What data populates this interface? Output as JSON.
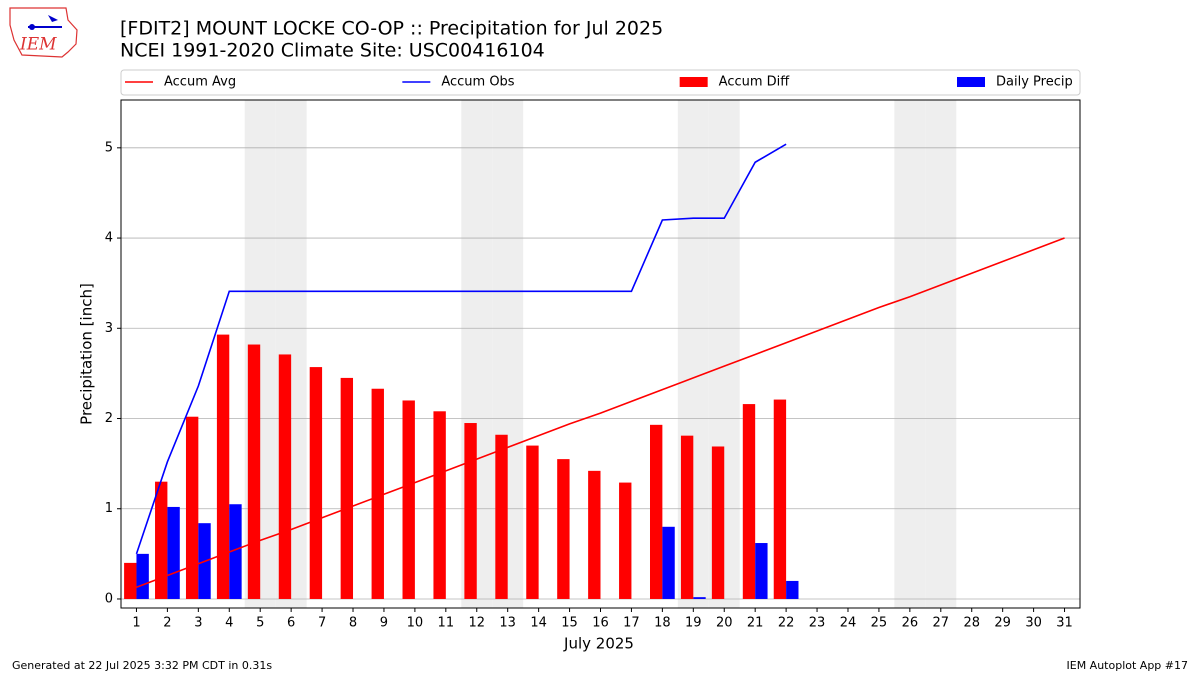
{
  "chart_data": {
    "type": "bar",
    "title": "[FDIT2] MOUNT LOCKE CO-OP :: Precipitation for Jul 2025",
    "subtitle": "NCEI 1991-2020 Climate Site: USC00416104",
    "logo_text": "IEM",
    "x_label": "July 2025",
    "y_label": "Precipitation [inch]",
    "x": [
      1,
      2,
      3,
      4,
      5,
      6,
      7,
      8,
      9,
      10,
      11,
      12,
      13,
      14,
      15,
      16,
      17,
      18,
      19,
      20,
      21,
      22,
      23,
      24,
      25,
      26,
      27,
      28,
      29,
      30,
      31
    ],
    "xlim": [
      0.5,
      31.5
    ],
    "xticks": [
      1,
      2,
      3,
      4,
      5,
      6,
      7,
      8,
      9,
      10,
      11,
      12,
      13,
      14,
      15,
      16,
      17,
      18,
      19,
      20,
      21,
      22,
      23,
      24,
      25,
      26,
      27,
      28,
      29,
      30,
      31
    ],
    "ylim": [
      -0.1,
      5.53
    ],
    "yticks": [
      0,
      1,
      2,
      3,
      4,
      5
    ],
    "grid": true,
    "legend": "top",
    "weekend_days": [
      5,
      6,
      12,
      13,
      19,
      20,
      26,
      27
    ],
    "series": [
      {
        "name": "Accum Avg",
        "color": "#ff0000",
        "type": "line",
        "values": [
          0.13,
          0.26,
          0.39,
          0.52,
          0.65,
          0.77,
          0.9,
          1.03,
          1.16,
          1.29,
          1.42,
          1.55,
          1.68,
          1.81,
          1.94,
          2.06,
          2.19,
          2.32,
          2.45,
          2.58,
          2.71,
          2.84,
          2.97,
          3.1,
          3.23,
          3.35,
          3.48,
          3.61,
          3.74,
          3.87,
          4.0
        ]
      },
      {
        "name": "Accum Obs",
        "color": "#0000ff",
        "type": "line",
        "values": [
          0.5,
          1.52,
          2.36,
          3.41,
          3.41,
          3.41,
          3.41,
          3.41,
          3.41,
          3.41,
          3.41,
          3.41,
          3.41,
          3.41,
          3.41,
          3.41,
          3.41,
          4.2,
          4.22,
          4.22,
          4.84,
          5.04,
          null,
          null,
          null,
          null,
          null,
          null,
          null,
          null,
          null
        ]
      },
      {
        "name": "Accum Diff",
        "color": "#ff0000",
        "type": "bar",
        "offset": -0.4,
        "values": [
          0.4,
          1.3,
          2.02,
          2.93,
          2.82,
          2.71,
          2.57,
          2.45,
          2.33,
          2.2,
          2.08,
          1.95,
          1.82,
          1.7,
          1.55,
          1.42,
          1.29,
          1.93,
          1.81,
          1.69,
          2.16,
          2.21,
          null,
          null,
          null,
          null,
          null,
          null,
          null,
          null,
          null
        ]
      },
      {
        "name": "Daily Precip",
        "color": "#0000ff",
        "type": "bar",
        "offset": 0,
        "values": [
          0.5,
          1.02,
          0.84,
          1.05,
          0,
          0,
          0,
          0,
          0,
          0,
          0,
          0,
          0,
          0,
          0,
          0,
          0,
          0.8,
          0.02,
          0,
          0.62,
          0.2,
          null,
          null,
          null,
          null,
          null,
          null,
          null,
          null,
          null
        ]
      }
    ],
    "footer_left": "Generated at 22 Jul 2025 3:32 PM CDT in 0.31s",
    "footer_right": "IEM Autoplot App #17"
  }
}
